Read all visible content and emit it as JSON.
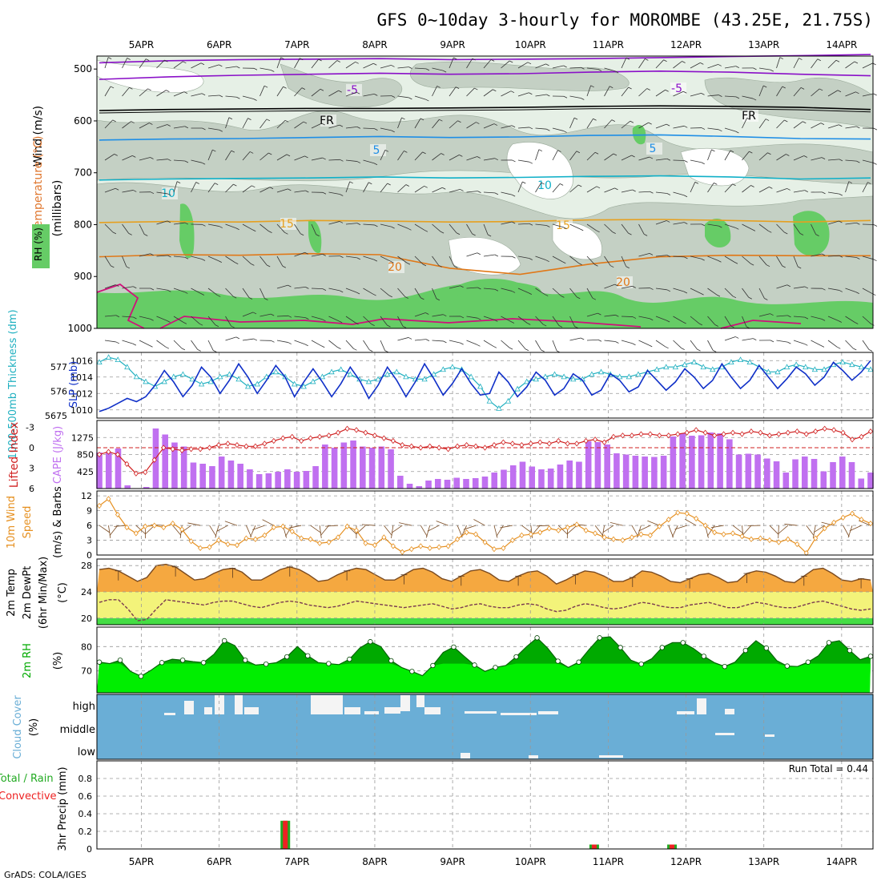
{
  "title": "GFS 0~10day 3-hourly for MOROMBE (43.25E, 21.75S)",
  "credit": "GrADS: COLA/IGES",
  "colors": {
    "rh_dark": "#66cc66",
    "rh_mid": "#c4d0c4",
    "rh_light": "#e6f0e6",
    "temp_purple": "#8a10c8",
    "temp_fr": "#000000",
    "temp_5": "#1e8ee6",
    "temp_10": "#10b0c8",
    "temp_15": "#e6a020",
    "temp_20": "#e07818",
    "temp_25": "#d0107a",
    "slp": "#1030c8",
    "thickness": "#20b0c0",
    "cape": "#c070f0",
    "lifted": "#d02020",
    "wind": "#e69020",
    "barb": "#7a4a20",
    "temp_fill": "#f5a840",
    "dew_fill": "#f3f37a",
    "low_fill": "#44dd44",
    "rh2m_dark": "#00aa00",
    "rh2m_light": "#00ee00",
    "cloud": "#6aaed6",
    "cloud_gap": "#f4f4f4",
    "precip_total": "#22aa22",
    "precip_conv": "#ee2222"
  },
  "chart_data": [
    {
      "type": "heatmap",
      "name": "upper-air",
      "ylabel_parts": [
        "RH (%)",
        "Temperature (°C)",
        "Wind (m/s)"
      ],
      "yunits": "(millibars)",
      "y_ticks": [
        "500",
        "600",
        "700",
        "800",
        "900",
        "1000"
      ],
      "dates": [
        "5APR",
        "6APR",
        "7APR",
        "8APR",
        "9APR",
        "10APR",
        "11APR",
        "12APR",
        "13APR",
        "14APR"
      ],
      "contour_labels": [
        {
          "text": "-5",
          "level": -5
        },
        {
          "text": "FR",
          "level": 0
        },
        {
          "text": "5",
          "level": 5
        },
        {
          "text": "10",
          "level": 10
        },
        {
          "text": "15",
          "level": 15
        },
        {
          "text": "20",
          "level": 20
        }
      ],
      "isotherms_mb": [
        {
          "level": "-5a",
          "mb": [
            488,
            484,
            482,
            481,
            480,
            482,
            481,
            480,
            478,
            476,
            474,
            472
          ]
        },
        {
          "level": "-5",
          "mb": [
            520,
            515,
            512,
            510,
            508,
            510,
            509,
            506,
            504,
            506,
            510,
            513
          ]
        },
        {
          "level": "FR",
          "mb": [
            580,
            578,
            577,
            576,
            576,
            575,
            574,
            572,
            571,
            572,
            574,
            578
          ]
        },
        {
          "level": "5",
          "mb": [
            637,
            635,
            634,
            632,
            630,
            632,
            631,
            628,
            627,
            630,
            634,
            635
          ]
        },
        {
          "level": "10",
          "mb": [
            714,
            712,
            711,
            710,
            708,
            710,
            709,
            707,
            706,
            708,
            712,
            710
          ]
        },
        {
          "level": "15",
          "mb": [
            796,
            794,
            795,
            792,
            793,
            795,
            794,
            791,
            790,
            792,
            795,
            792
          ]
        },
        {
          "level": "20",
          "mb": [
            862,
            858,
            859,
            856,
            858,
            884,
            896,
            876,
            862,
            859,
            860,
            860
          ]
        }
      ]
    },
    {
      "type": "line",
      "name": "slp-thickness",
      "ylabel_left": "1000-500mb Thickness (dm)",
      "ylabel_right": "SLP (mb)",
      "thickness_ticks": [
        "5675",
        "576",
        "577"
      ],
      "slp_ticks": [
        "1010",
        "1012",
        "1014",
        "1016"
      ],
      "slp": [
        1009.8,
        1010.2,
        1010.8,
        1011.4,
        1011.0,
        1011.6,
        1013.0,
        1014.8,
        1013.4,
        1011.6,
        1013.0,
        1015.2,
        1014.0,
        1012.0,
        1013.6,
        1015.6,
        1014.0,
        1012.0,
        1013.6,
        1015.4,
        1014.0,
        1011.6,
        1013.4,
        1015.0,
        1013.4,
        1011.6,
        1013.2,
        1015.2,
        1013.6,
        1011.4,
        1013.0,
        1015.2,
        1013.6,
        1011.6,
        1013.4,
        1015.6,
        1013.8,
        1011.8,
        1013.2,
        1015.0,
        1013.2,
        1011.8,
        1012.0,
        1014.6,
        1013.4,
        1011.6,
        1012.8,
        1014.6,
        1013.6,
        1011.8,
        1012.6,
        1014.4,
        1013.6,
        1011.8,
        1012.4,
        1014.4,
        1013.6,
        1012.2,
        1012.8,
        1014.8,
        1013.6,
        1012.4,
        1013.4,
        1015.0,
        1014.0,
        1012.6,
        1013.6,
        1015.6,
        1014.0,
        1012.6,
        1013.6,
        1015.4,
        1014.0,
        1012.6,
        1013.8,
        1015.2,
        1014.4,
        1013.0,
        1014.0,
        1015.8,
        1014.8,
        1013.6,
        1014.6,
        1016.0
      ],
      "thickness": [
        577.2,
        577.4,
        577.3,
        577.0,
        576.6,
        576.4,
        576.2,
        576.4,
        576.6,
        576.7,
        576.5,
        576.3,
        576.4,
        576.6,
        576.7,
        576.5,
        576.2,
        576.3,
        576.6,
        576.8,
        576.6,
        576.3,
        576.2,
        576.4,
        576.6,
        576.8,
        576.9,
        576.7,
        576.5,
        576.4,
        576.5,
        576.7,
        576.8,
        576.6,
        576.5,
        576.5,
        576.7,
        576.9,
        577.0,
        576.9,
        576.6,
        576.2,
        575.6,
        575.3,
        575.6,
        576.1,
        576.4,
        576.5,
        576.6,
        576.7,
        576.6,
        576.5,
        576.5,
        576.7,
        576.8,
        576.7,
        576.6,
        576.6,
        576.7,
        576.8,
        576.9,
        577.0,
        577.0,
        577.1,
        577.2,
        577.0,
        576.9,
        577.0,
        577.2,
        577.3,
        577.2,
        577.0,
        576.8,
        576.8,
        577.0,
        577.1,
        577.0,
        576.9,
        576.9,
        577.1,
        577.2,
        577.1,
        577.0,
        576.9
      ]
    },
    {
      "type": "bar",
      "name": "cape-li",
      "ylabel_left": "Lifted Index",
      "ylabel_right": "CAPE (J/kg)",
      "li_ticks": [
        "-3",
        "0",
        "3",
        "6"
      ],
      "cape_ticks": [
        "425",
        "850",
        "1275"
      ],
      "cape": [
        900,
        900,
        1000,
        80,
        0,
        40,
        1500,
        1350,
        1150,
        1050,
        650,
        620,
        560,
        800,
        700,
        620,
        480,
        360,
        380,
        420,
        480,
        420,
        440,
        560,
        1100,
        1020,
        1150,
        1200,
        1050,
        1020,
        1050,
        980,
        320,
        120,
        60,
        200,
        240,
        220,
        270,
        240,
        260,
        300,
        400,
        470,
        580,
        670,
        550,
        480,
        500,
        600,
        700,
        670,
        1180,
        1160,
        1100,
        880,
        850,
        820,
        800,
        790,
        820,
        1300,
        1380,
        1320,
        1330,
        1400,
        1380,
        1230,
        850,
        870,
        850,
        750,
        680,
        400,
        730,
        800,
        740,
        430,
        660,
        800,
        660,
        250,
        400
      ],
      "lifted_index": [
        1.0,
        0.6,
        1.0,
        2.4,
        3.8,
        3.6,
        1.8,
        0.0,
        0.2,
        0.4,
        0.2,
        0.2,
        0.0,
        -0.4,
        -0.6,
        -0.4,
        -0.2,
        -0.2,
        -0.6,
        -1.0,
        -1.4,
        -1.6,
        -1.0,
        -1.4,
        -1.6,
        -1.8,
        -2.2,
        -2.8,
        -2.6,
        -2.2,
        -1.8,
        -1.4,
        -1.0,
        -0.4,
        -0.2,
        0.0,
        -0.2,
        0.0,
        0.2,
        -0.2,
        -0.4,
        -0.2,
        0.0,
        -0.4,
        -0.8,
        -0.6,
        -0.4,
        -0.6,
        -0.8,
        -0.6,
        -1.0,
        -0.6,
        -0.6,
        -1.0,
        -1.2,
        -0.8,
        -1.6,
        -1.8,
        -1.8,
        -2.0,
        -2.0,
        -1.8,
        -1.8,
        -2.0,
        -2.2,
        -2.6,
        -2.2,
        -1.8,
        -2.0,
        -2.2,
        -2.0,
        -2.4,
        -2.2,
        -1.8,
        -2.0,
        -2.2,
        -2.4,
        -2.0,
        -2.4,
        -2.8,
        -2.6,
        -2.2,
        -1.2,
        -1.6,
        -2.4
      ]
    },
    {
      "type": "line",
      "name": "wind10m",
      "ylabel": "10m Wind Speed (m/s) & Barbs",
      "y_ticks": [
        "0",
        "3",
        "6",
        "9",
        "12"
      ],
      "speed": [
        10.0,
        11.4,
        8.2,
        5.6,
        4.4,
        5.8,
        6.0,
        5.6,
        6.4,
        5.2,
        2.8,
        1.4,
        1.6,
        3.0,
        2.2,
        2.0,
        3.4,
        3.2,
        4.0,
        5.6,
        5.8,
        4.8,
        3.4,
        3.2,
        2.4,
        2.6,
        3.6,
        5.8,
        5.0,
        2.4,
        2.0,
        3.6,
        1.8,
        0.6,
        1.2,
        1.8,
        1.4,
        1.6,
        1.8,
        3.2,
        4.6,
        4.2,
        2.6,
        1.2,
        1.4,
        3.0,
        4.0,
        4.2,
        4.6,
        5.4,
        5.0,
        5.6,
        6.2,
        5.0,
        4.4,
        3.6,
        3.2,
        3.0,
        3.6,
        4.2,
        4.0,
        5.8,
        7.2,
        8.6,
        8.4,
        7.4,
        6.0,
        4.6,
        4.2,
        4.4,
        3.8,
        3.2,
        3.4,
        3.0,
        2.6,
        3.2,
        2.2,
        0.4,
        3.4,
        5.4,
        6.6,
        7.6,
        8.4,
        7.2,
        6.4
      ]
    },
    {
      "type": "area",
      "name": "temp2m",
      "ylabel": "2m Temp 2m DewPt (6hr Min/Max) (°C)",
      "y_ticks": [
        "20",
        "24",
        "28"
      ],
      "temp": [
        27.4,
        27.6,
        27.2,
        26.4,
        25.6,
        26.2,
        28.0,
        28.2,
        27.8,
        26.8,
        25.8,
        26.0,
        26.8,
        27.4,
        27.6,
        27.0,
        25.8,
        25.8,
        26.6,
        27.4,
        27.8,
        27.4,
        26.6,
        25.6,
        25.8,
        26.6,
        27.2,
        27.6,
        27.4,
        26.6,
        25.8,
        25.8,
        26.6,
        27.4,
        27.6,
        27.0,
        26.0,
        25.6,
        26.4,
        27.2,
        27.4,
        26.8,
        25.8,
        25.6,
        26.4,
        27.0,
        27.2,
        26.4,
        25.2,
        25.8,
        26.6,
        27.2,
        27.0,
        26.4,
        25.6,
        25.6,
        26.2,
        27.2,
        27.0,
        26.4,
        25.6,
        25.4,
        26.0,
        26.6,
        26.8,
        26.2,
        25.4,
        25.6,
        26.8,
        27.2,
        27.0,
        26.4,
        25.6,
        25.4,
        26.4,
        27.4,
        27.6,
        26.8,
        25.8,
        25.6,
        26.0,
        25.8
      ],
      "dewpoint": [
        22.4,
        22.8,
        22.8,
        21.4,
        19.6,
        19.8,
        21.4,
        22.8,
        22.6,
        22.4,
        22.2,
        22.0,
        22.4,
        22.6,
        22.6,
        22.2,
        21.8,
        21.6,
        22.0,
        22.4,
        22.6,
        22.4,
        22.0,
        21.8,
        21.6,
        21.8,
        22.2,
        22.6,
        22.4,
        22.2,
        22.0,
        21.8,
        21.6,
        21.8,
        22.0,
        22.2,
        21.8,
        21.4,
        21.6,
        22.0,
        22.2,
        21.8,
        21.6,
        21.6,
        22.0,
        22.2,
        22.0,
        21.4,
        21.0,
        21.2,
        21.8,
        22.2,
        22.0,
        21.6,
        21.4,
        21.6,
        22.0,
        22.4,
        22.2,
        21.8,
        21.6,
        21.6,
        22.0,
        22.2,
        22.4,
        22.0,
        21.6,
        21.6,
        22.0,
        22.4,
        22.2,
        21.8,
        21.6,
        21.6,
        22.0,
        22.4,
        22.6,
        22.2,
        21.8,
        21.4,
        21.2,
        21.4
      ]
    },
    {
      "type": "area",
      "name": "rh2m",
      "ylabel": "2m RH (%)",
      "y_ticks": [
        "70",
        "80"
      ],
      "rh": [
        73.6,
        73.0,
        74.4,
        69.8,
        67.8,
        70.4,
        73.4,
        74.8,
        74.4,
        73.8,
        73.4,
        76.8,
        82.4,
        80.4,
        74.4,
        72.4,
        72.8,
        73.4,
        75.8,
        80.0,
        76.2,
        73.4,
        73.0,
        72.6,
        74.8,
        79.4,
        82.0,
        80.0,
        74.2,
        71.4,
        69.8,
        68.0,
        72.2,
        77.6,
        79.8,
        76.0,
        72.4,
        69.8,
        71.4,
        72.2,
        75.8,
        80.0,
        83.6,
        79.4,
        74.0,
        71.4,
        73.6,
        78.8,
        83.6,
        84.0,
        79.6,
        74.4,
        72.8,
        75.0,
        79.6,
        81.6,
        81.6,
        79.2,
        76.0,
        73.4,
        71.8,
        73.6,
        78.4,
        82.4,
        79.4,
        74.2,
        72.0,
        71.8,
        73.6,
        76.2,
        81.6,
        82.4,
        78.4,
        74.6,
        76.0
      ],
      "x_note": "rh series sampled over full date span"
    },
    {
      "type": "bar",
      "name": "cloud-cover",
      "ylabel": "Cloud Cover (%)",
      "levels": [
        "high",
        "middle",
        "low"
      ]
    },
    {
      "type": "bar",
      "name": "precip",
      "ylabel": "3hr Precip (mm)",
      "ylabel_left": "Total / Rain",
      "ylabel_conv": "Convective",
      "y_ticks": [
        "0",
        "0.2",
        "0.4",
        "0.6",
        "0.8"
      ],
      "run_total": "Run Total = 0.44",
      "bars": [
        {
          "day": 1.85,
          "total": 0.32,
          "convective": 0.32
        },
        {
          "day": 5.82,
          "total": 0.05,
          "convective": 0.05
        },
        {
          "day": 6.82,
          "total": 0.05,
          "convective": 0.05
        }
      ]
    }
  ]
}
